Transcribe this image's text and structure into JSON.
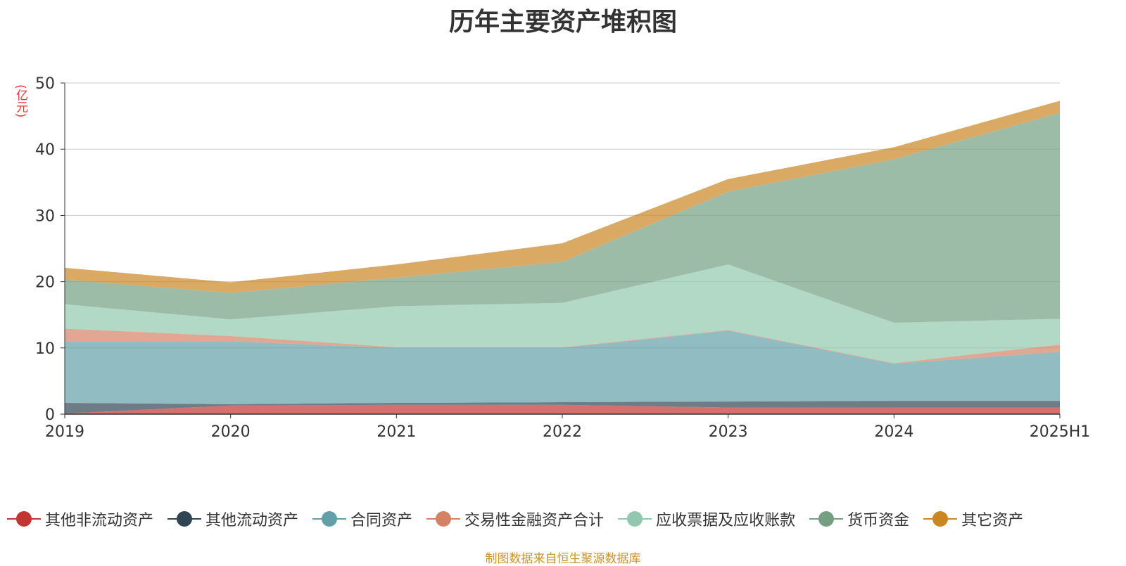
{
  "chart_data": {
    "type": "area",
    "stacked": true,
    "title": "历年主要资产堆积图",
    "ylabel": "(亿元)",
    "source_note": "制图数据来自恒生聚源数据库",
    "x": [
      "2019",
      "2020",
      "2021",
      "2022",
      "2023",
      "2024",
      "2025H1"
    ],
    "ylim": [
      0,
      50
    ],
    "yticks": [
      "0",
      "10",
      "20",
      "30",
      "40",
      "50"
    ],
    "grid": true,
    "legend_position": "bottom",
    "series": [
      {
        "name": "其他非流动资产",
        "color": "#c23531",
        "values": [
          0.1,
          1.3,
          1.4,
          1.4,
          1.0,
          1.0,
          1.0
        ]
      },
      {
        "name": "其他流动资产",
        "color": "#2f4554",
        "values": [
          1.6,
          0.2,
          0.3,
          0.4,
          0.9,
          1.0,
          1.0
        ]
      },
      {
        "name": "合同资产",
        "color": "#61a0a8",
        "values": [
          9.3,
          9.5,
          8.3,
          8.2,
          10.7,
          5.6,
          7.4
        ]
      },
      {
        "name": "交易性金融资产合计",
        "color": "#d48265",
        "values": [
          1.9,
          0.8,
          0.1,
          0.1,
          0.1,
          0.1,
          1.1
        ]
      },
      {
        "name": "应收票据及应收账款",
        "color": "#91c7ae",
        "values": [
          3.7,
          2.5,
          6.2,
          6.7,
          9.9,
          6.1,
          3.9
        ]
      },
      {
        "name": "货币资金",
        "color": "#749f83",
        "values": [
          3.7,
          4.0,
          4.3,
          6.2,
          11.0,
          24.7,
          31.1
        ]
      },
      {
        "name": "其它资产",
        "color": "#ca8622",
        "values": [
          1.8,
          1.6,
          2.0,
          2.8,
          1.9,
          1.8,
          1.8
        ]
      }
    ]
  }
}
